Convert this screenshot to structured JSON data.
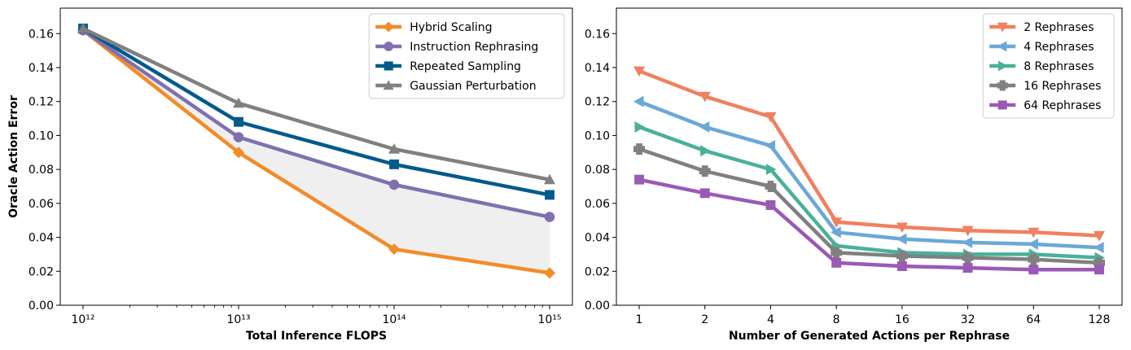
{
  "chart_data": [
    {
      "type": "line",
      "xscale": "log",
      "x": [
        1000000000000.0,
        10000000000000.0,
        100000000000000.0,
        1000000000000000.0
      ],
      "xticklabels": [
        "10¹²",
        "10¹³",
        "10¹⁴",
        "10¹⁵"
      ],
      "xlabel": "Total Inference FLOPS",
      "ylabel": "Oracle Action Error",
      "ylim": [
        0,
        0.175
      ],
      "yticks": [
        "0.00",
        "0.02",
        "0.04",
        "0.06",
        "0.08",
        "0.10",
        "0.12",
        "0.14",
        "0.16"
      ],
      "legend": "top-right",
      "shaded_region": "between Hybrid Scaling and Instruction Rephrasing",
      "series": [
        {
          "name": "Hybrid Scaling",
          "color": "#f28c28",
          "marker": "diamond",
          "values": [
            0.162,
            0.09,
            0.033,
            0.019
          ]
        },
        {
          "name": "Instruction Rephrasing",
          "color": "#8070b0",
          "marker": "circle",
          "values": [
            0.162,
            0.099,
            0.071,
            0.052
          ]
        },
        {
          "name": "Repeated Sampling",
          "color": "#005a8c",
          "marker": "square",
          "values": [
            0.163,
            0.108,
            0.083,
            0.065
          ]
        },
        {
          "name": "Gaussian Perturbation",
          "color": "#808080",
          "marker": "triangle-up",
          "values": [
            0.163,
            0.119,
            0.092,
            0.074
          ]
        }
      ]
    },
    {
      "type": "line",
      "categories": [
        "1",
        "2",
        "4",
        "8",
        "16",
        "32",
        "64",
        "128"
      ],
      "xlabel": "Number of Generated Actions per Rephrase",
      "ylabel": "",
      "ylim": [
        0,
        0.175
      ],
      "yticks": [
        "0.00",
        "0.02",
        "0.04",
        "0.06",
        "0.08",
        "0.10",
        "0.12",
        "0.14",
        "0.16"
      ],
      "legend": "top-right",
      "series": [
        {
          "name": "2 Rephrases",
          "color": "#f08060",
          "marker": "triangle-down",
          "values": [
            0.138,
            0.123,
            0.111,
            0.049,
            0.046,
            0.044,
            0.043,
            0.041
          ]
        },
        {
          "name": "4 Rephrases",
          "color": "#6aa8d8",
          "marker": "triangle-left",
          "values": [
            0.12,
            0.105,
            0.094,
            0.043,
            0.039,
            0.037,
            0.036,
            0.034
          ]
        },
        {
          "name": "8 Rephrases",
          "color": "#4ab09a",
          "marker": "triangle-right",
          "values": [
            0.105,
            0.091,
            0.08,
            0.035,
            0.031,
            0.03,
            0.03,
            0.028
          ]
        },
        {
          "name": "16 Rephrases",
          "color": "#808080",
          "marker": "plus",
          "values": [
            0.092,
            0.079,
            0.07,
            0.031,
            0.029,
            0.028,
            0.027,
            0.025
          ]
        },
        {
          "name": "64 Rephrases",
          "color": "#9b59b6",
          "marker": "square",
          "values": [
            0.074,
            0.066,
            0.059,
            0.025,
            0.023,
            0.022,
            0.021,
            0.021
          ]
        }
      ]
    }
  ]
}
